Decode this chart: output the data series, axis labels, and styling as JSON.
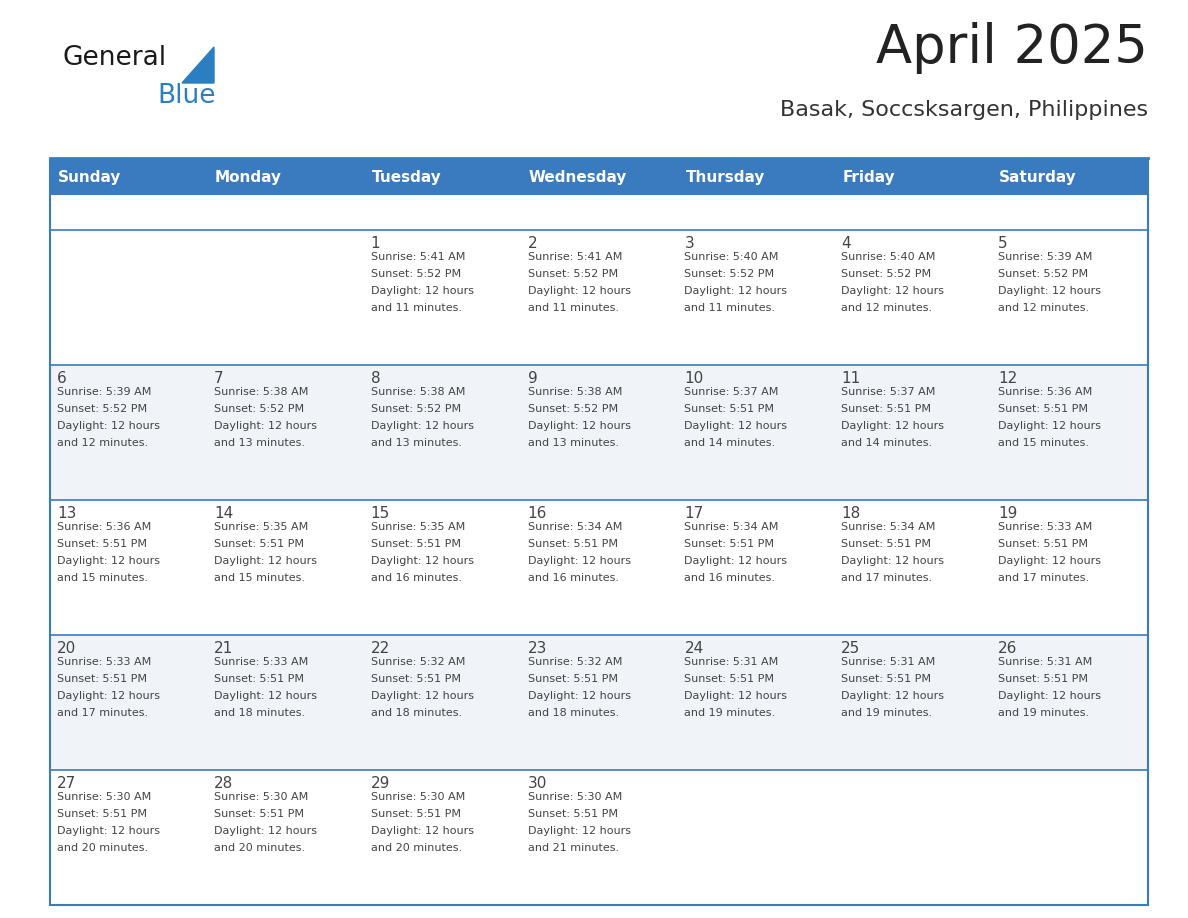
{
  "title": "April 2025",
  "subtitle": "Basak, Soccsksargen, Philippines",
  "header_color": "#3a7abf",
  "header_text_color": "#ffffff",
  "weekdays": [
    "Sunday",
    "Monday",
    "Tuesday",
    "Wednesday",
    "Thursday",
    "Friday",
    "Saturday"
  ],
  "bg_color": "#ffffff",
  "row_colors": [
    "#ffffff",
    "#f0f4f8"
  ],
  "cell_line_color": "#3a7abf",
  "text_color": "#444444",
  "title_color": "#222222",
  "subtitle_color": "#333333",
  "days": [
    {
      "day": 1,
      "col": 2,
      "row": 0,
      "sunrise": "5:41 AM",
      "sunset": "5:52 PM",
      "daylight_hours": 12,
      "daylight_minutes": 11
    },
    {
      "day": 2,
      "col": 3,
      "row": 0,
      "sunrise": "5:41 AM",
      "sunset": "5:52 PM",
      "daylight_hours": 12,
      "daylight_minutes": 11
    },
    {
      "day": 3,
      "col": 4,
      "row": 0,
      "sunrise": "5:40 AM",
      "sunset": "5:52 PM",
      "daylight_hours": 12,
      "daylight_minutes": 11
    },
    {
      "day": 4,
      "col": 5,
      "row": 0,
      "sunrise": "5:40 AM",
      "sunset": "5:52 PM",
      "daylight_hours": 12,
      "daylight_minutes": 12
    },
    {
      "day": 5,
      "col": 6,
      "row": 0,
      "sunrise": "5:39 AM",
      "sunset": "5:52 PM",
      "daylight_hours": 12,
      "daylight_minutes": 12
    },
    {
      "day": 6,
      "col": 0,
      "row": 1,
      "sunrise": "5:39 AM",
      "sunset": "5:52 PM",
      "daylight_hours": 12,
      "daylight_minutes": 12
    },
    {
      "day": 7,
      "col": 1,
      "row": 1,
      "sunrise": "5:38 AM",
      "sunset": "5:52 PM",
      "daylight_hours": 12,
      "daylight_minutes": 13
    },
    {
      "day": 8,
      "col": 2,
      "row": 1,
      "sunrise": "5:38 AM",
      "sunset": "5:52 PM",
      "daylight_hours": 12,
      "daylight_minutes": 13
    },
    {
      "day": 9,
      "col": 3,
      "row": 1,
      "sunrise": "5:38 AM",
      "sunset": "5:52 PM",
      "daylight_hours": 12,
      "daylight_minutes": 13
    },
    {
      "day": 10,
      "col": 4,
      "row": 1,
      "sunrise": "5:37 AM",
      "sunset": "5:51 PM",
      "daylight_hours": 12,
      "daylight_minutes": 14
    },
    {
      "day": 11,
      "col": 5,
      "row": 1,
      "sunrise": "5:37 AM",
      "sunset": "5:51 PM",
      "daylight_hours": 12,
      "daylight_minutes": 14
    },
    {
      "day": 12,
      "col": 6,
      "row": 1,
      "sunrise": "5:36 AM",
      "sunset": "5:51 PM",
      "daylight_hours": 12,
      "daylight_minutes": 15
    },
    {
      "day": 13,
      "col": 0,
      "row": 2,
      "sunrise": "5:36 AM",
      "sunset": "5:51 PM",
      "daylight_hours": 12,
      "daylight_minutes": 15
    },
    {
      "day": 14,
      "col": 1,
      "row": 2,
      "sunrise": "5:35 AM",
      "sunset": "5:51 PM",
      "daylight_hours": 12,
      "daylight_minutes": 15
    },
    {
      "day": 15,
      "col": 2,
      "row": 2,
      "sunrise": "5:35 AM",
      "sunset": "5:51 PM",
      "daylight_hours": 12,
      "daylight_minutes": 16
    },
    {
      "day": 16,
      "col": 3,
      "row": 2,
      "sunrise": "5:34 AM",
      "sunset": "5:51 PM",
      "daylight_hours": 12,
      "daylight_minutes": 16
    },
    {
      "day": 17,
      "col": 4,
      "row": 2,
      "sunrise": "5:34 AM",
      "sunset": "5:51 PM",
      "daylight_hours": 12,
      "daylight_minutes": 16
    },
    {
      "day": 18,
      "col": 5,
      "row": 2,
      "sunrise": "5:34 AM",
      "sunset": "5:51 PM",
      "daylight_hours": 12,
      "daylight_minutes": 17
    },
    {
      "day": 19,
      "col": 6,
      "row": 2,
      "sunrise": "5:33 AM",
      "sunset": "5:51 PM",
      "daylight_hours": 12,
      "daylight_minutes": 17
    },
    {
      "day": 20,
      "col": 0,
      "row": 3,
      "sunrise": "5:33 AM",
      "sunset": "5:51 PM",
      "daylight_hours": 12,
      "daylight_minutes": 17
    },
    {
      "day": 21,
      "col": 1,
      "row": 3,
      "sunrise": "5:33 AM",
      "sunset": "5:51 PM",
      "daylight_hours": 12,
      "daylight_minutes": 18
    },
    {
      "day": 22,
      "col": 2,
      "row": 3,
      "sunrise": "5:32 AM",
      "sunset": "5:51 PM",
      "daylight_hours": 12,
      "daylight_minutes": 18
    },
    {
      "day": 23,
      "col": 3,
      "row": 3,
      "sunrise": "5:32 AM",
      "sunset": "5:51 PM",
      "daylight_hours": 12,
      "daylight_minutes": 18
    },
    {
      "day": 24,
      "col": 4,
      "row": 3,
      "sunrise": "5:31 AM",
      "sunset": "5:51 PM",
      "daylight_hours": 12,
      "daylight_minutes": 19
    },
    {
      "day": 25,
      "col": 5,
      "row": 3,
      "sunrise": "5:31 AM",
      "sunset": "5:51 PM",
      "daylight_hours": 12,
      "daylight_minutes": 19
    },
    {
      "day": 26,
      "col": 6,
      "row": 3,
      "sunrise": "5:31 AM",
      "sunset": "5:51 PM",
      "daylight_hours": 12,
      "daylight_minutes": 19
    },
    {
      "day": 27,
      "col": 0,
      "row": 4,
      "sunrise": "5:30 AM",
      "sunset": "5:51 PM",
      "daylight_hours": 12,
      "daylight_minutes": 20
    },
    {
      "day": 28,
      "col": 1,
      "row": 4,
      "sunrise": "5:30 AM",
      "sunset": "5:51 PM",
      "daylight_hours": 12,
      "daylight_minutes": 20
    },
    {
      "day": 29,
      "col": 2,
      "row": 4,
      "sunrise": "5:30 AM",
      "sunset": "5:51 PM",
      "daylight_hours": 12,
      "daylight_minutes": 20
    },
    {
      "day": 30,
      "col": 3,
      "row": 4,
      "sunrise": "5:30 AM",
      "sunset": "5:51 PM",
      "daylight_hours": 12,
      "daylight_minutes": 21
    }
  ],
  "logo_text1": "General",
  "logo_text2": "Blue",
  "logo_color1": "#1a1a1a",
  "logo_color2": "#2b7fc0",
  "fig_width": 11.88,
  "fig_height": 9.18,
  "dpi": 100
}
